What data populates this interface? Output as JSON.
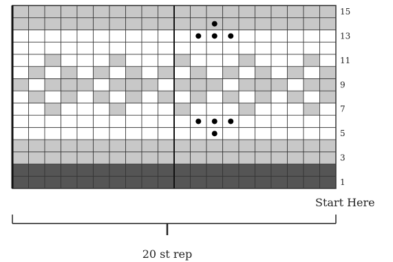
{
  "chart": {
    "columns": 20,
    "rows": 15,
    "row_labels": [
      "1",
      "3",
      "5",
      "7",
      "9",
      "11",
      "13",
      "15"
    ],
    "start_label": "Start Here",
    "repeat_label": "20 st rep",
    "colors": {
      "dark": "#555555",
      "medium": "#c8c8c8",
      "white": "#ffffff",
      "dot": "#000000",
      "line": "#333333"
    },
    "rows_from_bottom": [
      {
        "row": 1,
        "cells": "DDDDDDDDDDDDDDDDDDDD"
      },
      {
        "row": 2,
        "cells": "DDDDDDDDDDDDDDDDDDDD"
      },
      {
        "row": 3,
        "cells": "MMMMMMMMMMMMMMMMMMMM"
      },
      {
        "row": 4,
        "cells": "MMMMMMMMMMMMMMMMMMMM"
      },
      {
        "row": 5,
        "cells": "WWWWWWWWWWWWWWWWWWWW"
      },
      {
        "row": 6,
        "cells": "WWWWWWWWWWWWWWWWWWWW"
      },
      {
        "row": 7,
        "cells": "WWMWWWMWWWMWWWMWWWMW"
      },
      {
        "row": 8,
        "cells": "WMWMWMWMWMWMWMWMWMWM"
      },
      {
        "row": 9,
        "cells": "MWMMMWMMMWMMMWMMMWMM"
      },
      {
        "row": 10,
        "cells": "WMWMWMWMWMWMWMWMWMWM"
      },
      {
        "row": 11,
        "cells": "WWMWWWMWWWMWWWMWWWMW"
      },
      {
        "row": 12,
        "cells": "WWWWWWWWWWWWWWWWWWWW"
      },
      {
        "row": 13,
        "cells": "WWWWWWWWWWWWWWWWWWWW"
      },
      {
        "row": 14,
        "cells": "MMMMMMMMMMMMMMMMMMMM"
      },
      {
        "row": 15,
        "cells": "MMMMMMMMMMMMMMMMMMMM"
      }
    ],
    "dots": [
      {
        "row": 14,
        "col": 13
      },
      {
        "row": 13,
        "col": 12
      },
      {
        "row": 13,
        "col": 13
      },
      {
        "row": 13,
        "col": 14
      },
      {
        "row": 6,
        "col": 12
      },
      {
        "row": 6,
        "col": 13
      },
      {
        "row": 6,
        "col": 14
      },
      {
        "row": 5,
        "col": 13
      }
    ]
  }
}
